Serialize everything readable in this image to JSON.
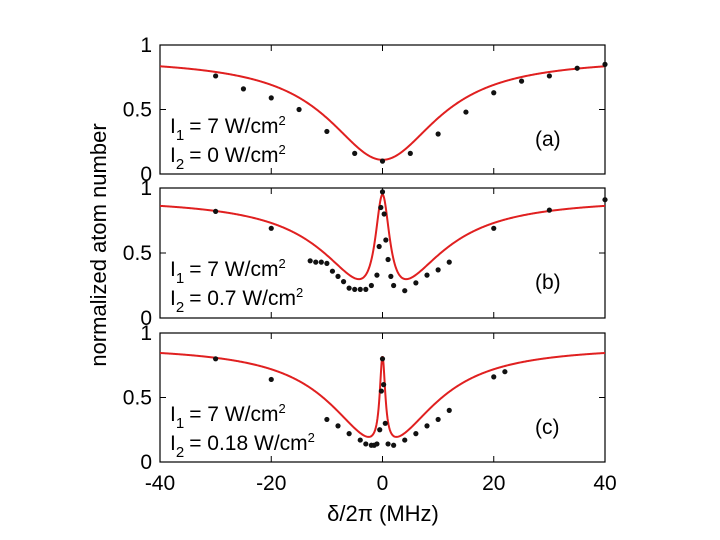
{
  "chart_data": {
    "type": "scatter",
    "shared_xlabel": "δ/2π (MHz)",
    "shared_ylabel": "normalized atom number",
    "xlim": [
      -40,
      40
    ],
    "x_ticks": [
      "-40",
      "-20",
      "0",
      "20",
      "40"
    ],
    "panels": [
      {
        "id": "a",
        "tag": "(a)",
        "ylim": [
          0,
          1
        ],
        "y_ticks": [
          "0",
          "0.5",
          "1"
        ],
        "i1_label": "I",
        "i1_sub": "1",
        "i1_value": "= 7 W/cm",
        "i1_sup": "2",
        "i2_label": "I",
        "i2_sub": "2",
        "i2_value": "= 0 W/cm",
        "i2_sup": "2",
        "fit": {
          "base": 0.9,
          "dip_depth": 0.79,
          "dip_width": 12.0,
          "peak_height": 0,
          "peak_width": 0.5,
          "clip_min": 0.1
        },
        "points": [
          [
            -30,
            0.76
          ],
          [
            -25,
            0.66
          ],
          [
            -20,
            0.59
          ],
          [
            -15,
            0.5
          ],
          [
            -10,
            0.33
          ],
          [
            -5,
            0.16
          ],
          [
            0,
            0.1
          ],
          [
            5,
            0.16
          ],
          [
            10,
            0.31
          ],
          [
            15,
            0.48
          ],
          [
            20,
            0.63
          ],
          [
            25,
            0.72
          ],
          [
            30,
            0.76
          ],
          [
            35,
            0.82
          ],
          [
            40,
            0.85
          ]
        ]
      },
      {
        "id": "b",
        "tag": "(b)",
        "ylim": [
          0,
          1
        ],
        "y_ticks": [
          "0",
          "0.5",
          "1"
        ],
        "i1_label": "I",
        "i1_sub": "1",
        "i1_value": "= 7 W/cm",
        "i1_sup": "2",
        "i2_label": "I",
        "i2_sub": "2",
        "i2_value": "= 0.7 W/cm",
        "i2_sup": "2",
        "fit": {
          "base": 0.92,
          "dip_depth": 0.82,
          "dip_width": 11.0,
          "peak_height": 0.95,
          "peak_width": 1.6,
          "clip_min": 0.18
        },
        "points": [
          [
            -30,
            0.82
          ],
          [
            -20,
            0.69
          ],
          [
            -13,
            0.44
          ],
          [
            -12,
            0.43
          ],
          [
            -11,
            0.43
          ],
          [
            -10,
            0.42
          ],
          [
            -9,
            0.36
          ],
          [
            -8,
            0.32
          ],
          [
            -7,
            0.28
          ],
          [
            -6,
            0.23
          ],
          [
            -5,
            0.22
          ],
          [
            -4,
            0.22
          ],
          [
            -3,
            0.22
          ],
          [
            -2,
            0.25
          ],
          [
            -1,
            0.33
          ],
          [
            -0.6,
            0.55
          ],
          [
            -0.3,
            0.85
          ],
          [
            0,
            0.97
          ],
          [
            0.3,
            0.8
          ],
          [
            0.6,
            0.6
          ],
          [
            1,
            0.45
          ],
          [
            1.5,
            0.32
          ],
          [
            2,
            0.25
          ],
          [
            4,
            0.21
          ],
          [
            6,
            0.27
          ],
          [
            8,
            0.33
          ],
          [
            10,
            0.37
          ],
          [
            12,
            0.43
          ],
          [
            20,
            0.69
          ],
          [
            30,
            0.83
          ],
          [
            40,
            0.91
          ]
        ]
      },
      {
        "id": "c",
        "tag": "(c)",
        "ylim": [
          0,
          1
        ],
        "y_ticks": [
          "0",
          "0.5",
          "1"
        ],
        "i1_label": "I",
        "i1_sub": "1",
        "i1_value": "= 7 W/cm",
        "i1_sup": "2",
        "i2_label": "I",
        "i2_sub": "2",
        "i2_value": "= 0.18 W/cm",
        "i2_sup": "2",
        "fit": {
          "base": 0.9,
          "dip_depth": 0.78,
          "dip_width": 11.0,
          "peak_height": 0.82,
          "peak_width": 0.6,
          "clip_min": 0.12
        },
        "points": [
          [
            -30,
            0.8
          ],
          [
            -20,
            0.64
          ],
          [
            -10,
            0.33
          ],
          [
            -8,
            0.28
          ],
          [
            -6,
            0.22
          ],
          [
            -4,
            0.17
          ],
          [
            -3,
            0.14
          ],
          [
            -2,
            0.13
          ],
          [
            -1.5,
            0.13
          ],
          [
            -1,
            0.14
          ],
          [
            -0.5,
            0.25
          ],
          [
            -0.2,
            0.55
          ],
          [
            0,
            0.8
          ],
          [
            0.2,
            0.6
          ],
          [
            0.5,
            0.3
          ],
          [
            1,
            0.14
          ],
          [
            2,
            0.13
          ],
          [
            4,
            0.17
          ],
          [
            6,
            0.22
          ],
          [
            8,
            0.28
          ],
          [
            10,
            0.33
          ],
          [
            12,
            0.4
          ],
          [
            20,
            0.66
          ],
          [
            22,
            0.7
          ]
        ]
      }
    ]
  }
}
